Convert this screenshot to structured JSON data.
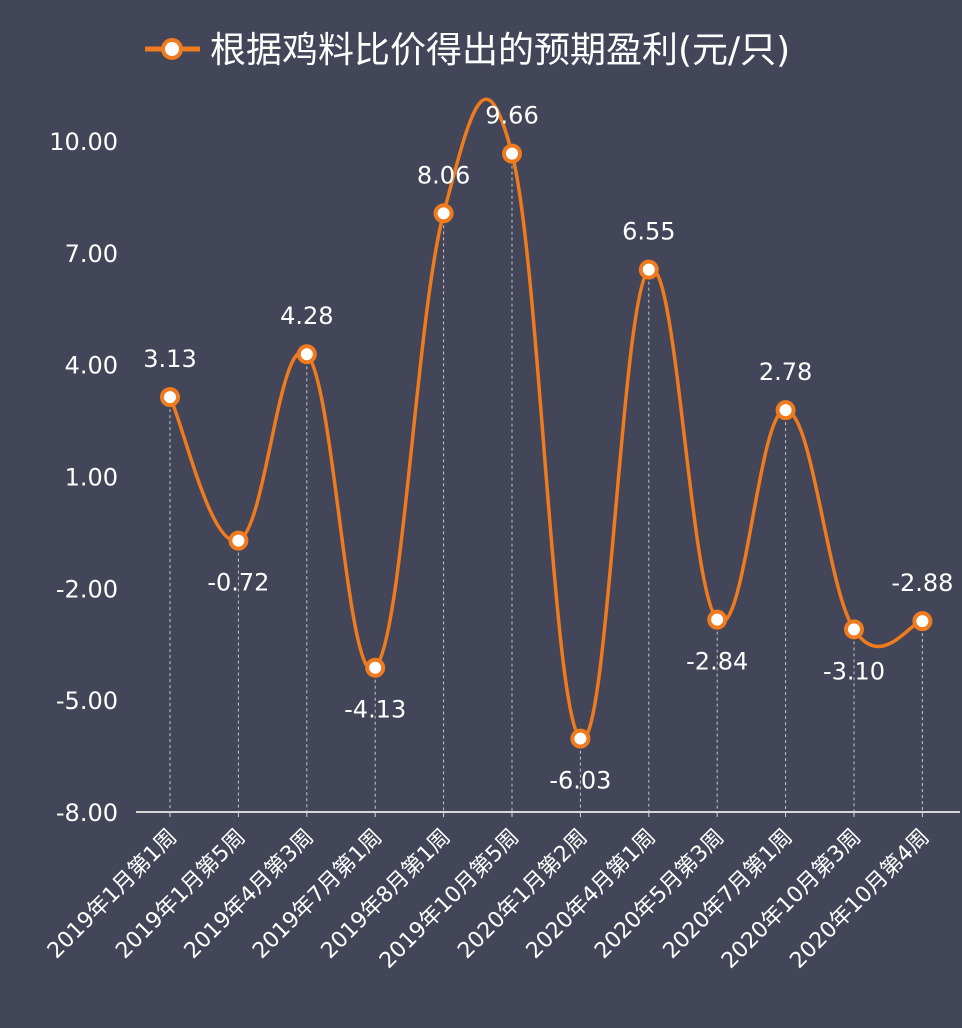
{
  "chart_data": {
    "type": "line",
    "title": "根据鸡料比价得出的预期盈利(元/只)",
    "legend_position": "top",
    "smooth": true,
    "grid": false,
    "ylim": [
      -8,
      10
    ],
    "yticks": [
      "-8.00",
      "-5.00",
      "-2.00",
      "1.00",
      "4.00",
      "7.00",
      "10.00"
    ],
    "ytick_values": [
      -8,
      -5,
      -2,
      1,
      4,
      7,
      10
    ],
    "categories": [
      "2019年1月第1周",
      "2019年1月第5周",
      "2019年4月第3周",
      "2019年7月第1周",
      "2019年8月第1周",
      "2019年10月第5周",
      "2020年1月第2周",
      "2020年4月第1周",
      "2020年5月第3周",
      "2020年7月第1周",
      "2020年10月第3周",
      "2020年10月第4周"
    ],
    "series": [
      {
        "name": "根据鸡料比价得出的预期盈利(元/只)",
        "values": [
          3.13,
          -0.72,
          4.28,
          -4.13,
          8.06,
          9.66,
          -6.03,
          6.55,
          -2.84,
          2.78,
          -3.1,
          -2.88
        ],
        "labels": [
          "3.13",
          "-0.72",
          "4.28",
          "-4.13",
          "8.06",
          "9.66",
          "-6.03",
          "6.55",
          "-2.84",
          "2.78",
          "-3.10",
          "-2.88"
        ],
        "label_below": [
          false,
          true,
          false,
          true,
          false,
          false,
          true,
          false,
          true,
          false,
          true,
          false
        ]
      }
    ],
    "colors": {
      "background": "#424658",
      "line": "#f07a1e",
      "marker_fill": "#ffffff",
      "text": "#ffffff",
      "axis": "#d8d8d8"
    }
  }
}
